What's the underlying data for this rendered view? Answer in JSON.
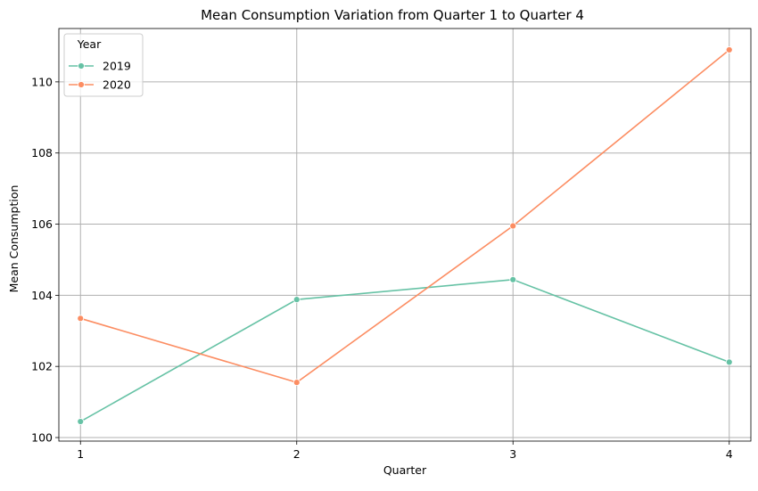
{
  "chart_data": {
    "type": "line",
    "title": "Mean Consumption Variation from Quarter 1 to Quarter 4",
    "xlabel": "Quarter",
    "ylabel": "Mean Consumption",
    "x": [
      1,
      2,
      3,
      4
    ],
    "x_tick_labels": [
      "1",
      "2",
      "3",
      "4"
    ],
    "y_ticks": [
      100,
      102,
      104,
      106,
      108,
      110
    ],
    "y_tick_labels": [
      "100",
      "102",
      "104",
      "106",
      "108",
      "110"
    ],
    "xlim": [
      0.9,
      4.1
    ],
    "ylim": [
      99.9,
      111.5
    ],
    "grid": true,
    "legend": {
      "title": "Year",
      "position": "top-left"
    },
    "series": [
      {
        "name": "2019",
        "color": "#66c2a5",
        "values": [
          100.45,
          103.88,
          104.44,
          102.12
        ]
      },
      {
        "name": "2020",
        "color": "#fc8d62",
        "values": [
          103.35,
          101.55,
          105.95,
          110.9
        ]
      }
    ]
  }
}
